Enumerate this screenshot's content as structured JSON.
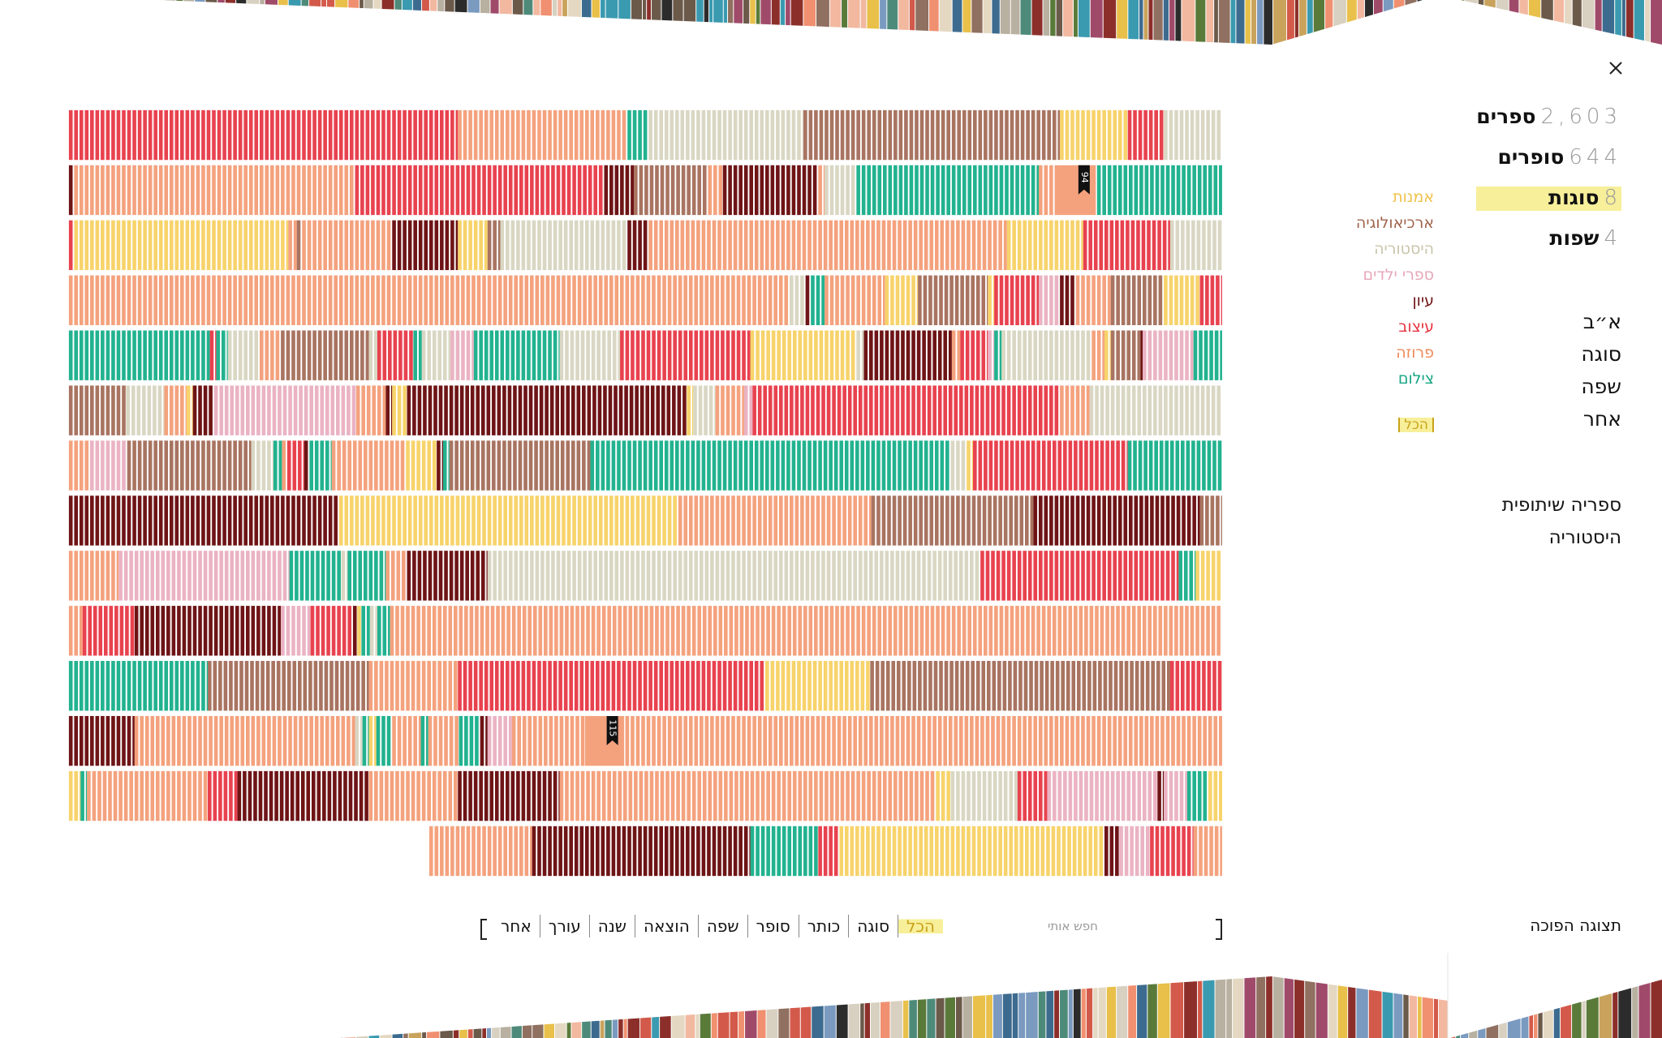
{
  "stats": [
    {
      "value": "2,603",
      "label": "ספרים"
    },
    {
      "value": "644",
      "label": "סופרים"
    },
    {
      "value": "8",
      "label": "סוגות"
    },
    {
      "value": "4",
      "label": "שפות"
    }
  ],
  "genres": {
    "items": [
      "אמנות",
      "ארכיאולוגיה",
      "היסטוריה",
      "ספרי ילדים",
      "עיון",
      "עיצוב",
      "פרוזה",
      "צילום"
    ],
    "all": "הכל"
  },
  "sort_options": [
    "א״ב",
    "סוגה",
    "שפה",
    "אחר"
  ],
  "links": [
    "ספריה שיתופית",
    "היסטוריה"
  ],
  "view_toggle": "תצוגה הפוכה",
  "search": {
    "placeholder": "חפש אותי",
    "fields": [
      "הכל",
      "סוגה",
      "כותר",
      "סופר",
      "שפה",
      "הוצאה",
      "שנה",
      "עורך",
      "אחר"
    ]
  },
  "markers": [
    "94",
    "115"
  ]
}
